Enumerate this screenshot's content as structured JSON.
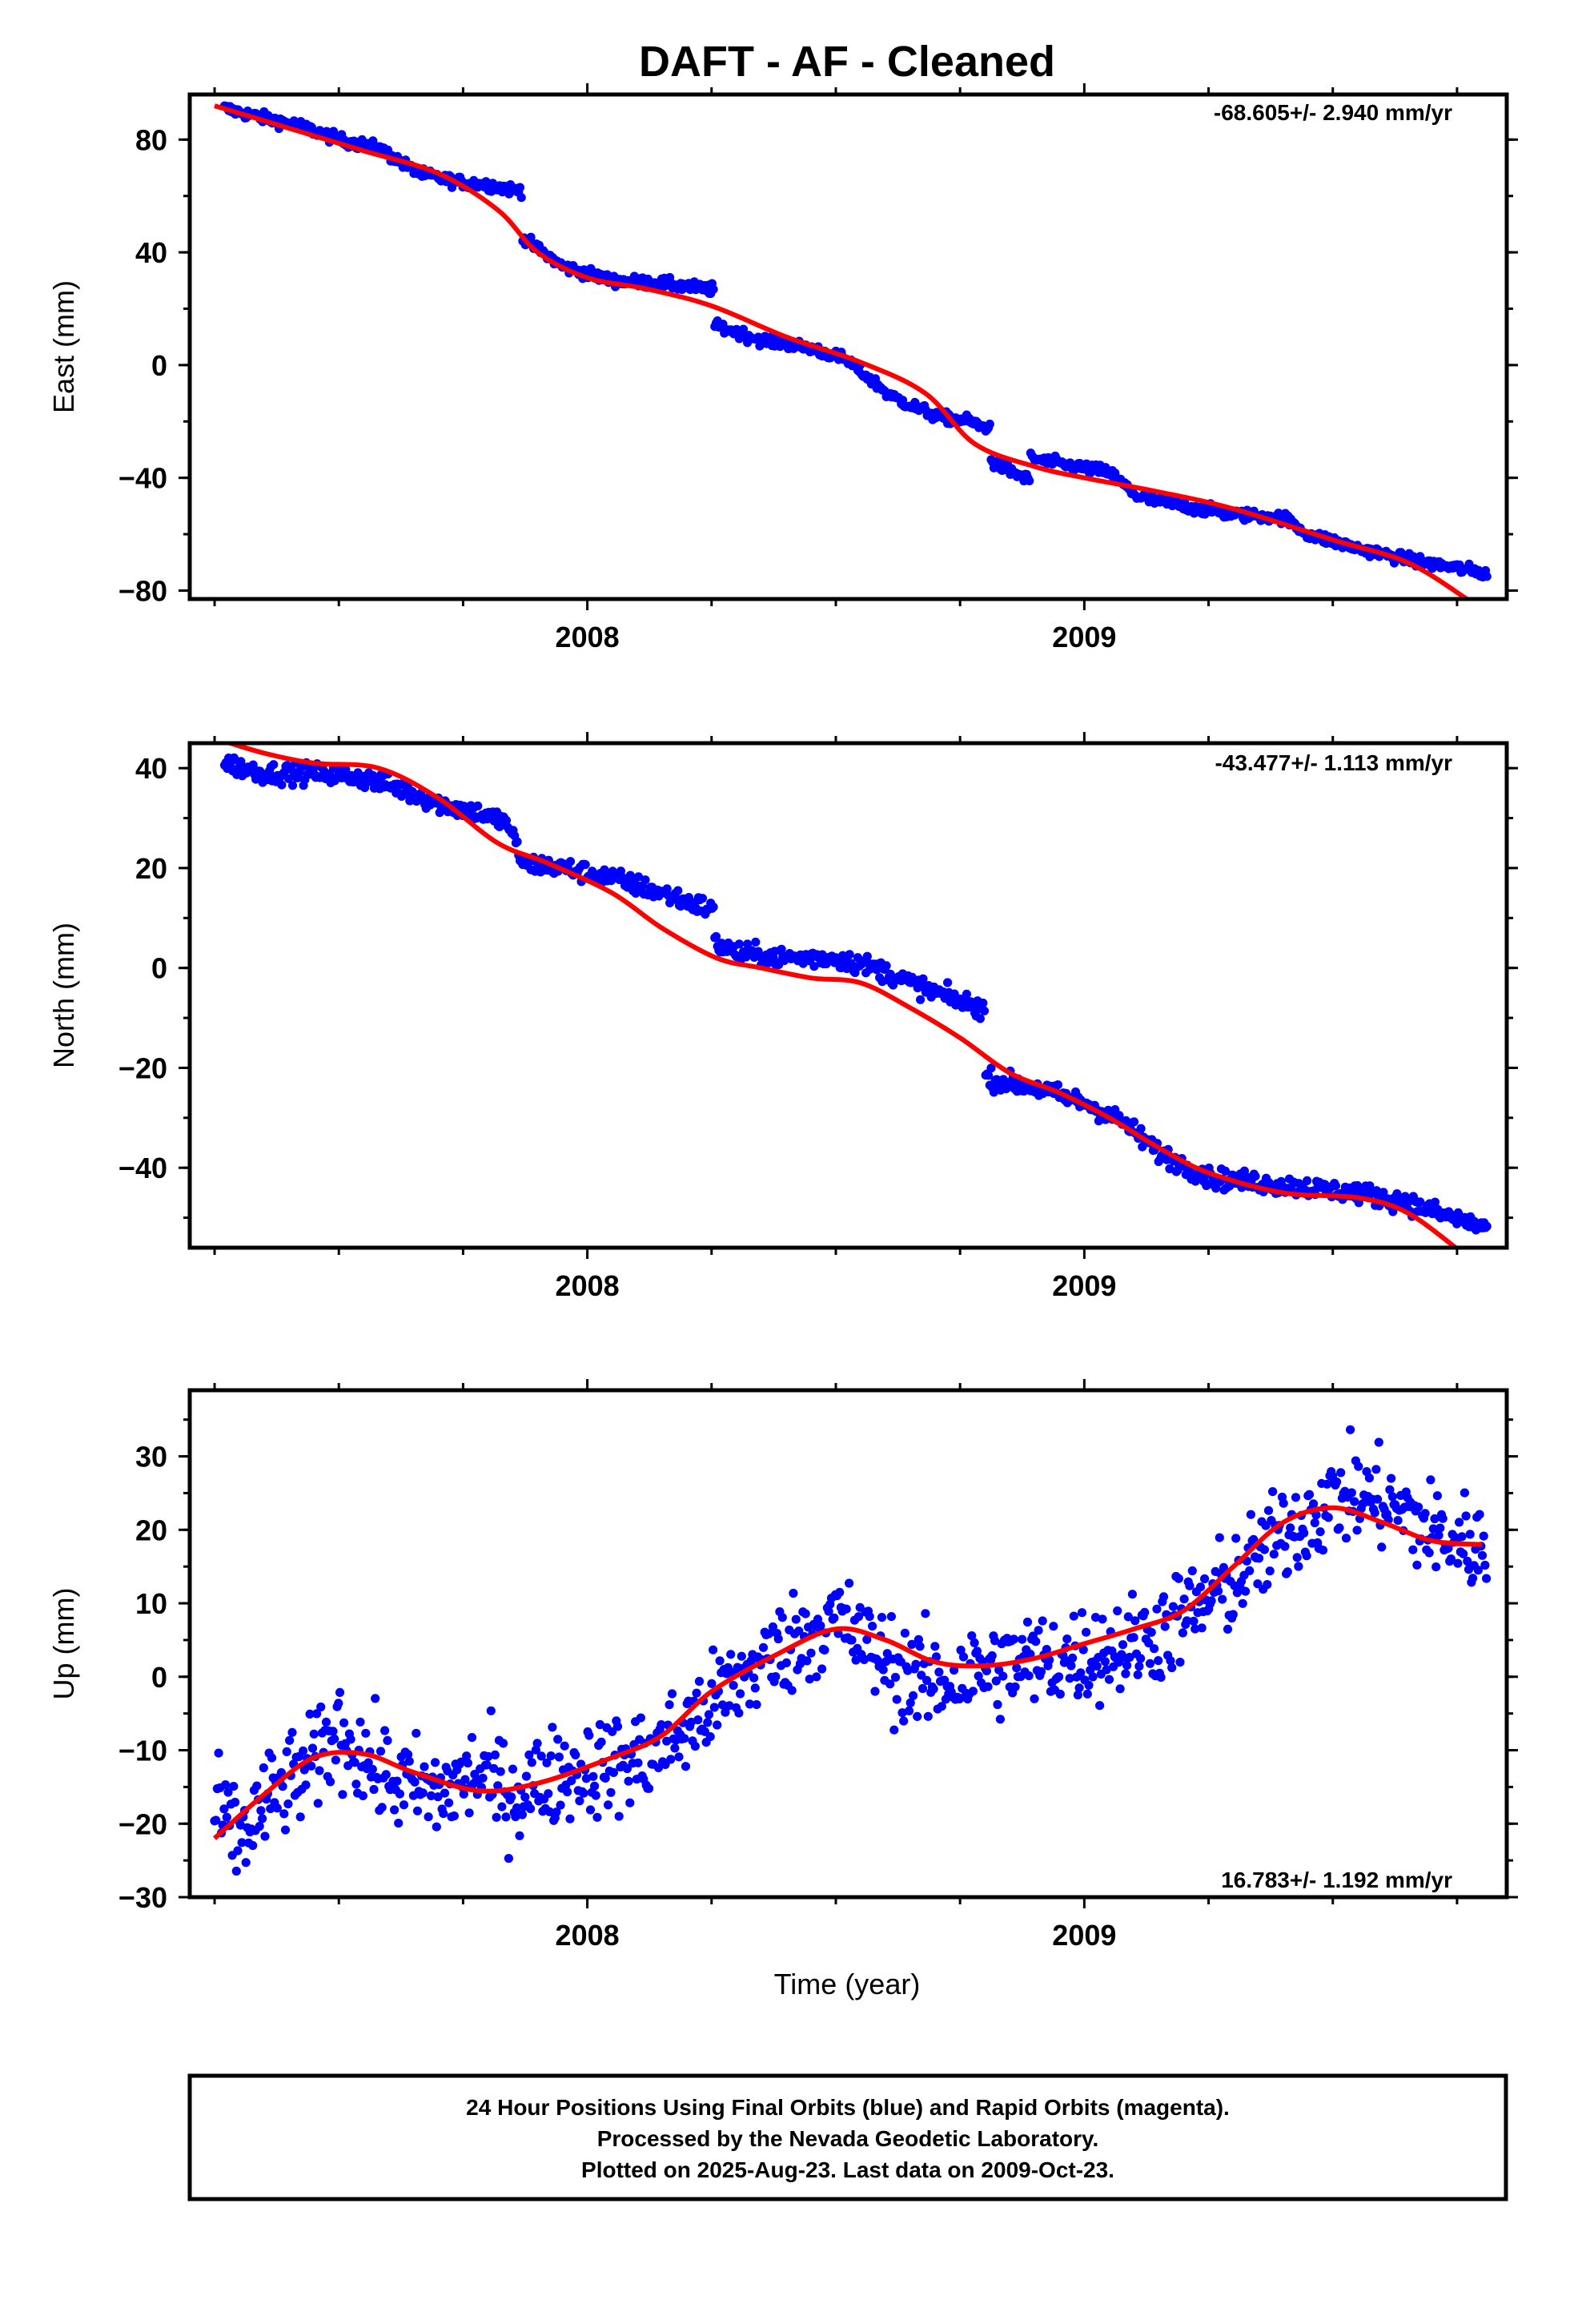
{
  "title": "DAFT  - AF - Cleaned",
  "xlabel": "Time (year)",
  "footer": {
    "line1": "24 Hour Positions Using Final Orbits (blue) and Rapid Orbits (magenta).",
    "line2": "Processed by the Nevada Geodetic Laboratory.",
    "line3": "Plotted on 2025-Aug-23. Last data on 2009-Oct-23."
  },
  "colors": {
    "data": "#0000ff",
    "model": "#ff0000",
    "frame": "#000000"
  },
  "chart_data": [
    {
      "type": "scatter",
      "ylabel": "East (mm)",
      "rate": "-68.605+/- 2.940 mm/yr",
      "xlim": [
        2007.2,
        2009.85
      ],
      "ylim": [
        -83,
        96
      ],
      "yticks": [
        80,
        40,
        0,
        -40,
        -80
      ],
      "yticklabels": [
        "80",
        "40",
        "0",
        "−40",
        "−80"
      ],
      "xticks": [
        2008,
        2009
      ],
      "xticklabels": [
        "2008",
        "2009"
      ],
      "x": [
        2007.27,
        2007.34,
        2007.42,
        2007.5,
        2007.58,
        2007.66,
        2007.74,
        2007.8,
        2007.855,
        2007.87,
        2007.95,
        2008.05,
        2008.15,
        2008.24,
        2008.255,
        2008.35,
        2008.45,
        2008.52,
        2008.57,
        2008.61,
        2008.7,
        2008.77,
        2008.795,
        2008.81,
        2008.88,
        2008.89,
        2008.95,
        2009.05,
        2009.11,
        2009.2,
        2009.3,
        2009.4,
        2009.45,
        2009.55,
        2009.65,
        2009.75,
        2009.81
      ],
      "y": [
        91,
        88,
        85,
        80,
        77,
        68,
        65,
        64,
        62,
        45,
        35,
        30,
        29,
        27,
        14,
        9,
        6,
        2,
        -5,
        -11,
        -18,
        -20,
        -22,
        -34,
        -40,
        -33,
        -35,
        -38,
        -47,
        -50,
        -53,
        -54,
        -60,
        -65,
        -69,
        -72,
        -74
      ],
      "model_x": [
        2007.25,
        2007.4,
        2007.55,
        2007.7,
        2007.82,
        2007.9,
        2008.0,
        2008.12,
        2008.25,
        2008.4,
        2008.55,
        2008.68,
        2008.78,
        2008.9,
        2009.0,
        2009.15,
        2009.3,
        2009.5,
        2009.65,
        2009.77
      ],
      "model_y": [
        92,
        84,
        76,
        68,
        55,
        40,
        31,
        27,
        21,
        10,
        1,
        -10,
        -28,
        -36,
        -40,
        -45,
        -51,
        -62,
        -70,
        -83
      ]
    },
    {
      "type": "scatter",
      "ylabel": "North (mm)",
      "rate": "-43.477+/- 1.113 mm/yr",
      "xlim": [
        2007.2,
        2009.85
      ],
      "ylim": [
        -56,
        45
      ],
      "yticks": [
        40,
        20,
        0,
        -20,
        -40
      ],
      "yticklabels": [
        "40",
        "20",
        "0",
        "−20",
        "−40"
      ],
      "xticks": [
        2008,
        2009
      ],
      "xticklabels": [
        "2008",
        "2009"
      ],
      "x": [
        2007.27,
        2007.35,
        2007.45,
        2007.55,
        2007.62,
        2007.7,
        2007.78,
        2007.84,
        2007.87,
        2007.95,
        2008.05,
        2008.15,
        2008.24,
        2008.255,
        2008.3,
        2008.4,
        2008.5,
        2008.58,
        2008.65,
        2008.73,
        2008.79,
        2008.8,
        2008.9,
        2009.0,
        2009.08,
        2009.15,
        2009.25,
        2009.35,
        2009.45,
        2009.55,
        2009.65,
        2009.74,
        2009.81
      ],
      "y": [
        41,
        39,
        39,
        38,
        36,
        33,
        31,
        29,
        21,
        20,
        18,
        15,
        12,
        5,
        3,
        2,
        2,
        0,
        -3,
        -6,
        -8,
        -22,
        -24,
        -27,
        -31,
        -37,
        -42,
        -43,
        -44,
        -45,
        -47,
        -50,
        -52
      ],
      "model_x": [
        2007.25,
        2007.35,
        2007.45,
        2007.58,
        2007.7,
        2007.82,
        2007.92,
        2008.05,
        2008.15,
        2008.26,
        2008.35,
        2008.45,
        2008.55,
        2008.65,
        2008.75,
        2008.85,
        2008.95,
        2009.05,
        2009.15,
        2009.25,
        2009.4,
        2009.55,
        2009.65,
        2009.76
      ],
      "model_y": [
        46,
        43,
        41,
        40,
        34,
        25,
        21,
        15,
        8,
        2,
        0,
        -2,
        -3,
        -8,
        -14,
        -21,
        -25,
        -30,
        -36,
        -41,
        -45,
        -46,
        -49,
        -57
      ]
    },
    {
      "type": "scatter",
      "ylabel": "Up (mm)",
      "rate": "16.783+/- 1.192 mm/yr",
      "xlim": [
        2007.2,
        2009.85
      ],
      "ylim": [
        -30,
        39
      ],
      "yticks": [
        30,
        20,
        10,
        0,
        -10,
        -20,
        -30
      ],
      "yticklabels": [
        "30",
        "20",
        "10",
        "0",
        "−10",
        "−20",
        "−30"
      ],
      "xticks": [
        2008,
        2009
      ],
      "xticklabels": [
        "2008",
        "2009"
      ],
      "x": [
        2007.25,
        2007.3,
        2007.37,
        2007.45,
        2007.5,
        2007.55,
        2007.6,
        2007.7,
        2007.78,
        2007.85,
        2007.95,
        2008.05,
        2008.12,
        2008.2,
        2008.28,
        2008.35,
        2008.42,
        2008.5,
        2008.55,
        2008.62,
        2008.7,
        2008.8,
        2008.9,
        2009.0,
        2009.08,
        2009.15,
        2009.22,
        2009.3,
        2009.38,
        2009.45,
        2009.52,
        2009.6,
        2009.67,
        2009.72,
        2009.78,
        2009.81
      ],
      "y": [
        -18,
        -22,
        -16,
        -12,
        -7,
        -11,
        -14,
        -16,
        -13,
        -16,
        -13,
        -12,
        -11,
        -7,
        -2,
        2,
        5,
        8,
        5,
        1,
        -1,
        1,
        2,
        3,
        4,
        6,
        9,
        13,
        18,
        22,
        25,
        24,
        21,
        19,
        18,
        17
      ],
      "model_x": [
        2007.25,
        2007.35,
        2007.45,
        2007.55,
        2007.65,
        2007.78,
        2007.9,
        2008.05,
        2008.15,
        2008.25,
        2008.38,
        2008.5,
        2008.6,
        2008.7,
        2008.8,
        2008.9,
        2009.0,
        2009.1,
        2009.2,
        2009.3,
        2009.4,
        2009.5,
        2009.6,
        2009.7,
        2009.8
      ],
      "model_y": [
        -22,
        -16,
        -11,
        -10.5,
        -13,
        -15.5,
        -14.5,
        -11,
        -8,
        -2,
        3,
        6.5,
        5,
        2,
        1.5,
        2.5,
        4.5,
        6.5,
        9,
        15,
        21,
        23,
        21,
        18.5,
        18
      ]
    }
  ]
}
